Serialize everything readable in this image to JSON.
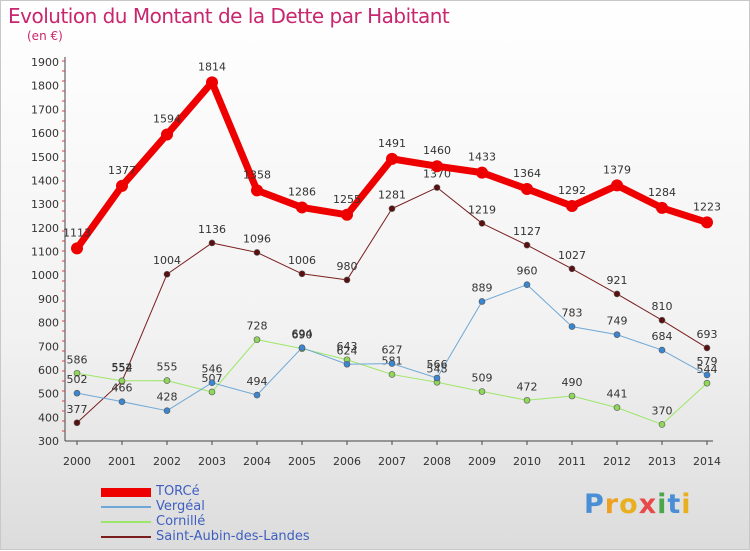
{
  "title": "Evolution du Montant de la Dette par Habitant",
  "subtitle": "(en €)",
  "brand": {
    "letters": [
      "P",
      "r",
      "o",
      "x",
      "i",
      "t",
      "i"
    ],
    "colors": [
      "#4a8fd6",
      "#f0a020",
      "#e8b020",
      "#e84a4a",
      "#4aa84a",
      "#4a8fd6",
      "#e8b020"
    ]
  },
  "chart_data": {
    "type": "line",
    "x": [
      "2000",
      "2001",
      "2002",
      "2003",
      "2004",
      "2005",
      "2006",
      "2007",
      "2008",
      "2009",
      "2010",
      "2011",
      "2012",
      "2013",
      "2014"
    ],
    "ylim": [
      300,
      1900
    ],
    "yticks": [
      "300",
      "400",
      "500",
      "600",
      "700",
      "800",
      "900",
      "1000",
      "1100",
      "1200",
      "1300",
      "1400",
      "1500",
      "1600",
      "1700",
      "1800",
      "1900"
    ],
    "grid": false,
    "legend_position": "bottom-left",
    "series": [
      {
        "name": "Saint-Aubin-des-Landes",
        "color": "#7a1e1e",
        "marker": "#5a1010",
        "width": 1,
        "values": [
          377,
          552,
          1004,
          1136,
          1096,
          1006,
          980,
          1281,
          1370,
          1219,
          1127,
          1027,
          921,
          810,
          693
        ]
      },
      {
        "name": "Cornillé",
        "color": "#9ee66a",
        "marker": "#8fd65a",
        "width": 1,
        "values": [
          586,
          554,
          555,
          507,
          728,
          690,
          643,
          581,
          548,
          509,
          472,
          490,
          441,
          370,
          544
        ]
      },
      {
        "name": "Vergéal",
        "color": "#6fa8d6",
        "marker": "#3a86d0",
        "width": 1,
        "values": [
          502,
          466,
          428,
          546,
          494,
          694,
          624,
          627,
          566,
          889,
          960,
          783,
          749,
          684,
          579
        ]
      },
      {
        "name": "TORCé",
        "color": "#ee0000",
        "marker": "#ee0000",
        "width": 7,
        "values": [
          1113,
          1377,
          1594,
          1814,
          1358,
          1286,
          1255,
          1491,
          1460,
          1433,
          1364,
          1292,
          1379,
          1284,
          1223
        ]
      }
    ],
    "legend": [
      "TORCé",
      "Vergéal",
      "Cornillé",
      "Saint-Aubin-des-Landes"
    ]
  }
}
